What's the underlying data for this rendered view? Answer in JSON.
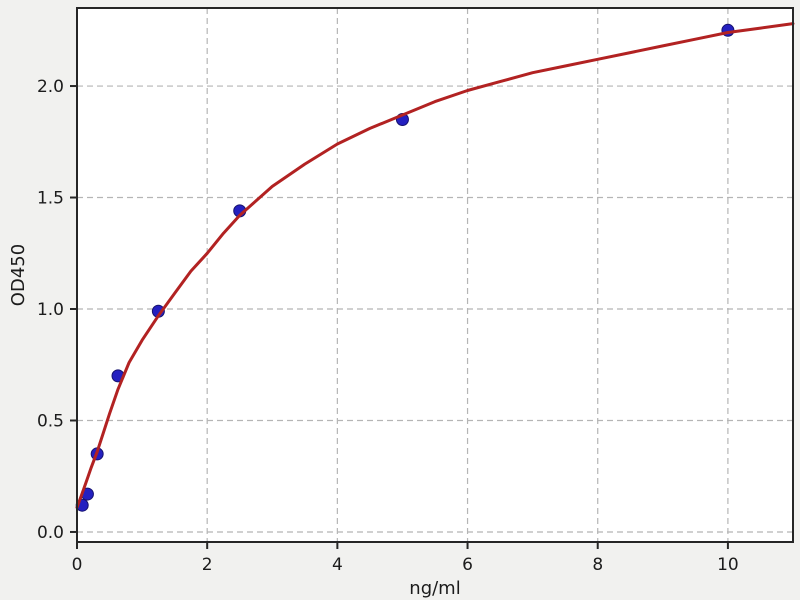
{
  "figure": {
    "background_color": "#f1f1ef",
    "plot_background_color": "#ffffff",
    "grid_color": "#b5b5b5",
    "spine_color": "#262626",
    "tick_text_color": "#1c1c1c"
  },
  "chart_data": {
    "type": "scatter",
    "title": "",
    "xlabel": "ng/ml",
    "ylabel": "OD450",
    "xlim": [
      0,
      11
    ],
    "ylim": [
      -0.045,
      2.35
    ],
    "xticks": [
      0,
      2,
      4,
      6,
      8,
      10
    ],
    "xtick_labels": [
      "0",
      "2",
      "4",
      "6",
      "8",
      "10"
    ],
    "yticks": [
      0.0,
      0.5,
      1.0,
      1.5,
      2.0
    ],
    "ytick_labels": [
      "0.0",
      "0.5",
      "1.0",
      "1.5",
      "2.0"
    ],
    "grid": true,
    "grid_style": "dashed",
    "legend": false,
    "series": [
      {
        "name": "standard-points",
        "type": "scatter",
        "marker_color": "#2420c0",
        "marker_edge_color": "#16126e",
        "marker_radius": 6,
        "x": [
          0.08,
          0.16,
          0.31,
          0.63,
          1.25,
          2.5,
          5,
          10
        ],
        "y": [
          0.12,
          0.17,
          0.35,
          0.7,
          0.99,
          1.44,
          1.85,
          2.25
        ]
      },
      {
        "name": "fit-curve",
        "type": "line",
        "line_color": "#b22222",
        "line_width": 3,
        "x": [
          0,
          0.05,
          0.1,
          0.16,
          0.22,
          0.31,
          0.4,
          0.5,
          0.63,
          0.8,
          1,
          1.25,
          1.5,
          1.75,
          2,
          2.25,
          2.5,
          3,
          3.5,
          4,
          4.5,
          5,
          5.5,
          6,
          6.5,
          7,
          7.5,
          8,
          8.5,
          9,
          9.5,
          10,
          10.5,
          11
        ],
        "y": [
          0.11,
          0.15,
          0.19,
          0.24,
          0.29,
          0.36,
          0.44,
          0.53,
          0.64,
          0.76,
          0.86,
          0.97,
          1.07,
          1.17,
          1.25,
          1.34,
          1.42,
          1.55,
          1.65,
          1.74,
          1.81,
          1.87,
          1.93,
          1.98,
          2.02,
          2.06,
          2.09,
          2.12,
          2.15,
          2.18,
          2.21,
          2.24,
          2.26,
          2.28
        ]
      }
    ]
  }
}
